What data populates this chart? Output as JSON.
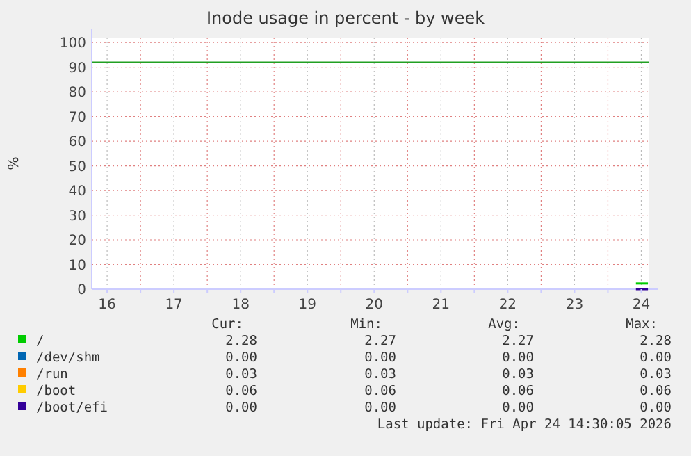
{
  "chart_data": {
    "type": "line",
    "title": "Inode usage in percent - by week",
    "ylabel": "%",
    "xlim": [
      15.77,
      24.12
    ],
    "x": [
      23.92,
      24.1
    ],
    "ylim": [
      0,
      102
    ],
    "xticks": [
      16,
      {
        "value": 16.5,
        "label": null
      },
      17,
      {
        "value": 17.5,
        "label": null
      },
      18,
      {
        "value": 18.5,
        "label": null
      },
      19,
      {
        "value": 19.5,
        "label": null
      },
      20,
      {
        "value": 20.5,
        "label": null
      },
      21,
      {
        "value": 21.5,
        "label": null
      },
      22,
      {
        "value": 22.5,
        "label": null
      },
      23,
      {
        "value": 23.5,
        "label": null
      },
      24
    ],
    "yticks": [
      0,
      10,
      20,
      30,
      40,
      50,
      60,
      70,
      80,
      90,
      100
    ],
    "grid": true,
    "legend": "bottom",
    "marker": "none",
    "line_style": "solid",
    "ref_lines": [
      {
        "axis": "y",
        "value": 92,
        "color": "#22a022"
      }
    ],
    "series": [
      {
        "name": "/",
        "color": "#00cc00",
        "values": [
          2.3,
          2.3
        ]
      },
      {
        "name": "/dev/shm",
        "color": "#0066b3",
        "values": [
          null,
          null
        ]
      },
      {
        "name": "/run",
        "color": "#ff8000",
        "values": [
          null,
          null
        ]
      },
      {
        "name": "/boot",
        "color": "#ffcc00",
        "values": [
          null,
          null
        ]
      },
      {
        "name": "/boot/efi",
        "color": "#330099",
        "values": [
          0,
          0
        ]
      }
    ],
    "annotations": [
      "Cur:",
      "Min:",
      "Avg:",
      "Max:",
      "2.28",
      "2.27",
      "2.27",
      "2.28",
      "0.00",
      "0.00",
      "0.00",
      "0.00",
      "0.03",
      "0.03",
      "0.03",
      "0.03",
      "0.06",
      "0.06",
      "0.06",
      "0.06",
      "0.00",
      "0.00",
      "0.00",
      "0.00",
      "Last update: Fri Apr 24 14:30:05 2026"
    ]
  }
}
